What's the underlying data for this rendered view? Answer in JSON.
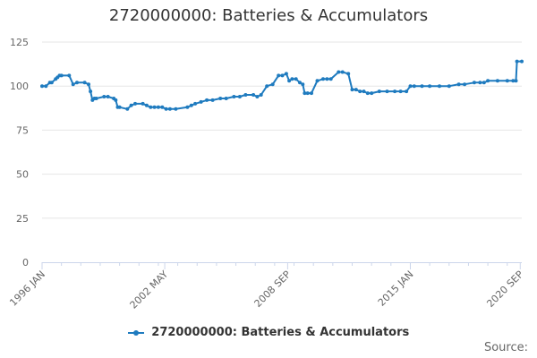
{
  "chart_data": {
    "type": "line",
    "title": "2720000000: Batteries & Accumulators",
    "xlabel": "",
    "ylabel": "",
    "ylim": [
      0,
      125
    ],
    "yticks": [
      0,
      25,
      50,
      75,
      100,
      125
    ],
    "xlim": [
      1996.0,
      2020.75
    ],
    "xticks": [
      {
        "label": "1996 JAN",
        "x": 1996.0
      },
      {
        "label": "2002 MAY",
        "x": 2002.33
      },
      {
        "label": "2008 SEP",
        "x": 2008.67
      },
      {
        "label": "2015 JAN",
        "x": 2015.0
      },
      {
        "label": "2020 SEP",
        "x": 2020.67
      }
    ],
    "grid": true,
    "legend_position": "bottom",
    "series": [
      {
        "name": "2720000000: Batteries & Accumulators",
        "color": "#1f7bbf",
        "x": [
          1996.0,
          1996.2,
          1996.4,
          1996.5,
          1996.7,
          1996.8,
          1996.9,
          1997.0,
          1997.4,
          1997.6,
          1997.8,
          1998.2,
          1998.4,
          1998.5,
          1998.6,
          1998.7,
          1998.8,
          1999.2,
          1999.4,
          1999.7,
          1999.8,
          1999.9,
          2000.0,
          2000.4,
          2000.6,
          2000.8,
          2001.2,
          2001.4,
          2001.6,
          2001.8,
          2002.0,
          2002.2,
          2002.4,
          2002.6,
          2002.9,
          2003.5,
          2003.7,
          2003.9,
          2004.2,
          2004.5,
          2004.8,
          2005.2,
          2005.5,
          2005.9,
          2006.2,
          2006.5,
          2006.9,
          2007.1,
          2007.3,
          2007.6,
          2007.9,
          2008.2,
          2008.4,
          2008.6,
          2008.75,
          2008.9,
          2009.1,
          2009.3,
          2009.45,
          2009.55,
          2009.7,
          2009.9,
          2010.2,
          2010.5,
          2010.7,
          2010.9,
          2011.3,
          2011.5,
          2011.8,
          2012.0,
          2012.2,
          2012.4,
          2012.6,
          2012.8,
          2013.0,
          2013.4,
          2013.8,
          2014.2,
          2014.5,
          2014.8,
          2015.0,
          2015.2,
          2015.6,
          2016.0,
          2016.5,
          2017.0,
          2017.5,
          2017.8,
          2018.3,
          2018.6,
          2018.8,
          2019.0,
          2019.5,
          2020.0,
          2020.3,
          2020.45,
          2020.5,
          2020.75
        ],
        "values": [
          100,
          100,
          102,
          102,
          104,
          105,
          106,
          106,
          106,
          101,
          102,
          102,
          101,
          97,
          92,
          93,
          93,
          94,
          94,
          93,
          92,
          88,
          88,
          87,
          89,
          90,
          90,
          89,
          88,
          88,
          88,
          88,
          87,
          87,
          87,
          88,
          89,
          90,
          91,
          92,
          92,
          93,
          93,
          94,
          94,
          95,
          95,
          94,
          95,
          100,
          101,
          106,
          106,
          107,
          103,
          104,
          104,
          102,
          101,
          96,
          96,
          96,
          103,
          104,
          104,
          104,
          108,
          108,
          107,
          98,
          98,
          97,
          97,
          96,
          96,
          97,
          97,
          97,
          97,
          97,
          100,
          100,
          100,
          100,
          100,
          100,
          101,
          101,
          102,
          102,
          102,
          103,
          103,
          103,
          103,
          103,
          114,
          114
        ]
      }
    ],
    "source_label": "Source:"
  }
}
